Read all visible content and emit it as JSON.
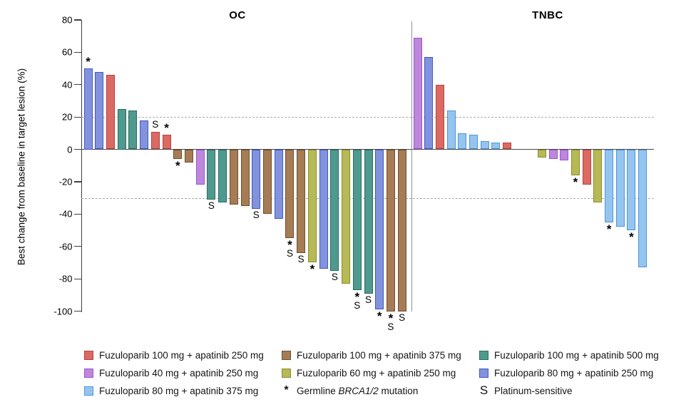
{
  "figure": {
    "y_axis_label": "Best change from baseline in target lesion (%)"
  },
  "colors": {
    "red": {
      "fill": "#DC6A63",
      "border": "#B2413D"
    },
    "purple": {
      "fill": "#BD87DC",
      "border": "#9E52CE"
    },
    "lightblue": {
      "fill": "#94C5EF",
      "border": "#4C95DB"
    },
    "brown": {
      "fill": "#A67C54",
      "border": "#6F4F2F"
    },
    "yellow": {
      "fill": "#B6B955",
      "border": "#8A8F2E"
    },
    "teal": {
      "fill": "#4E9A8E",
      "border": "#2A6C60"
    },
    "blue": {
      "fill": "#8193DB",
      "border": "#4456C8"
    },
    "axis": "#3f3f3f",
    "zero_line": "#4a4a4a",
    "dashed_line": "#ababab"
  },
  "chart_data": {
    "type": "bar",
    "subtype": "waterfall",
    "ylabel": "Best change from baseline in target lesion (%)",
    "ylim": [
      -100,
      80
    ],
    "yticks": [
      80,
      60,
      40,
      20,
      0,
      -20,
      -40,
      -60,
      -80,
      -100
    ],
    "threshold_lines": [
      20,
      -30
    ],
    "grid": "dashed thresholds only",
    "legend_position": "bottom",
    "arms": {
      "red": "Fuzuloparib 100 mg + apatinib 250 mg",
      "purple": "Fuzuloparib 40 mg + apatinib 250 mg",
      "lightblue": "Fuzuloparib 80 mg + apatinib 375 mg",
      "brown": "Fuzuloparib 100 mg + apatinib 375 mg",
      "yellow": "Fuzuloparib 60 mg + apatinib 250 mg",
      "teal": "Fuzuloparib 100 mg + apatinib 500 mg",
      "blue": "Fuzuloparib 80 mg + apatinib 250 mg"
    },
    "markers": {
      "*": "Germline BRCA1/2 mutation",
      "S": "Platinum-sensitive"
    },
    "groups": [
      {
        "name": "OC",
        "bars": [
          {
            "value": 50,
            "arm": "blue",
            "marks": [
              "*"
            ]
          },
          {
            "value": 48,
            "arm": "blue",
            "marks": []
          },
          {
            "value": 46,
            "arm": "red",
            "marks": []
          },
          {
            "value": 25,
            "arm": "teal",
            "marks": []
          },
          {
            "value": 24,
            "arm": "teal",
            "marks": []
          },
          {
            "value": 18,
            "arm": "blue",
            "marks": []
          },
          {
            "value": 11,
            "arm": "red",
            "marks": [
              "S"
            ]
          },
          {
            "value": 9,
            "arm": "red",
            "marks": [
              "*"
            ]
          },
          {
            "value": -6,
            "arm": "brown",
            "marks": [
              "*"
            ]
          },
          {
            "value": -8,
            "arm": "brown",
            "marks": []
          },
          {
            "value": -22,
            "arm": "purple",
            "marks": []
          },
          {
            "value": -31,
            "arm": "teal",
            "marks": [
              "S"
            ]
          },
          {
            "value": -33,
            "arm": "teal",
            "marks": []
          },
          {
            "value": -34,
            "arm": "brown",
            "marks": []
          },
          {
            "value": -35,
            "arm": "brown",
            "marks": []
          },
          {
            "value": -37,
            "arm": "blue",
            "marks": [
              "S"
            ]
          },
          {
            "value": -40,
            "arm": "brown",
            "marks": []
          },
          {
            "value": -43,
            "arm": "blue",
            "marks": []
          },
          {
            "value": -55,
            "arm": "brown",
            "marks": [
              "*",
              "S"
            ]
          },
          {
            "value": -64,
            "arm": "brown",
            "marks": [
              "S"
            ]
          },
          {
            "value": -70,
            "arm": "yellow",
            "marks": [
              "*"
            ]
          },
          {
            "value": -74,
            "arm": "blue",
            "marks": []
          },
          {
            "value": -75,
            "arm": "teal",
            "marks": [
              "S"
            ]
          },
          {
            "value": -83,
            "arm": "yellow",
            "marks": []
          },
          {
            "value": -87,
            "arm": "teal",
            "marks": [
              "*",
              "S"
            ]
          },
          {
            "value": -89,
            "arm": "teal",
            "marks": [
              "S"
            ]
          },
          {
            "value": -99,
            "arm": "blue",
            "marks": [
              "*"
            ]
          },
          {
            "value": -100,
            "arm": "brown",
            "marks": [
              "*",
              "S"
            ]
          },
          {
            "value": -100,
            "arm": "brown",
            "marks": [
              "S"
            ]
          }
        ]
      },
      {
        "name": "TNBC",
        "gap_after_index": 8,
        "bars": [
          {
            "value": 69,
            "arm": "purple",
            "marks": []
          },
          {
            "value": 57,
            "arm": "blue",
            "marks": []
          },
          {
            "value": 40,
            "arm": "red",
            "marks": []
          },
          {
            "value": 24,
            "arm": "lightblue",
            "marks": []
          },
          {
            "value": 10,
            "arm": "lightblue",
            "marks": []
          },
          {
            "value": 9,
            "arm": "lightblue",
            "marks": []
          },
          {
            "value": 5,
            "arm": "lightblue",
            "marks": []
          },
          {
            "value": 4,
            "arm": "lightblue",
            "marks": []
          },
          {
            "value": 4,
            "arm": "red",
            "marks": []
          },
          {
            "value": -5,
            "arm": "yellow",
            "marks": []
          },
          {
            "value": -6,
            "arm": "purple",
            "marks": []
          },
          {
            "value": -7,
            "arm": "purple",
            "marks": []
          },
          {
            "value": -16,
            "arm": "yellow",
            "marks": [
              "*"
            ]
          },
          {
            "value": -22,
            "arm": "red",
            "marks": []
          },
          {
            "value": -33,
            "arm": "yellow",
            "marks": []
          },
          {
            "value": -45,
            "arm": "lightblue",
            "marks": [
              "*"
            ]
          },
          {
            "value": -48,
            "arm": "lightblue",
            "marks": []
          },
          {
            "value": -50,
            "arm": "lightblue",
            "marks": [
              "*"
            ]
          },
          {
            "value": -73,
            "arm": "lightblue",
            "marks": []
          }
        ]
      }
    ],
    "legend": [
      {
        "row": 0,
        "col": 0,
        "type": "swatch",
        "arm": "red",
        "label": "Fuzuloparib 100 mg + apatinib 250 mg"
      },
      {
        "row": 0,
        "col": 1,
        "type": "swatch",
        "arm": "brown",
        "label": "Fuzuloparib 100 mg + apatinib 375 mg"
      },
      {
        "row": 0,
        "col": 2,
        "type": "swatch",
        "arm": "teal",
        "label": "Fuzuloparib 100 mg + apatinib 500 mg"
      },
      {
        "row": 1,
        "col": 0,
        "type": "swatch",
        "arm": "purple",
        "label": "Fuzuloparib 40 mg + apatinib 250 mg"
      },
      {
        "row": 1,
        "col": 1,
        "type": "swatch",
        "arm": "yellow",
        "label": "Fuzuloparib 60 mg + apatinib 250 mg"
      },
      {
        "row": 1,
        "col": 2,
        "type": "swatch",
        "arm": "blue",
        "label": "Fuzuloparib 80 mg + apatinib 250 mg"
      },
      {
        "row": 2,
        "col": 0,
        "type": "swatch",
        "arm": "lightblue",
        "label": "Fuzuloparib 80 mg + apatinib 375 mg"
      },
      {
        "row": 2,
        "col": 1,
        "type": "symbol",
        "symbol": "*",
        "label_prefix": "Germline ",
        "label_italic": "BRCA1/2",
        "label_suffix": " mutation"
      },
      {
        "row": 2,
        "col": 2,
        "type": "symbol",
        "symbol": "S",
        "label": "Platinum-sensitive"
      }
    ]
  }
}
